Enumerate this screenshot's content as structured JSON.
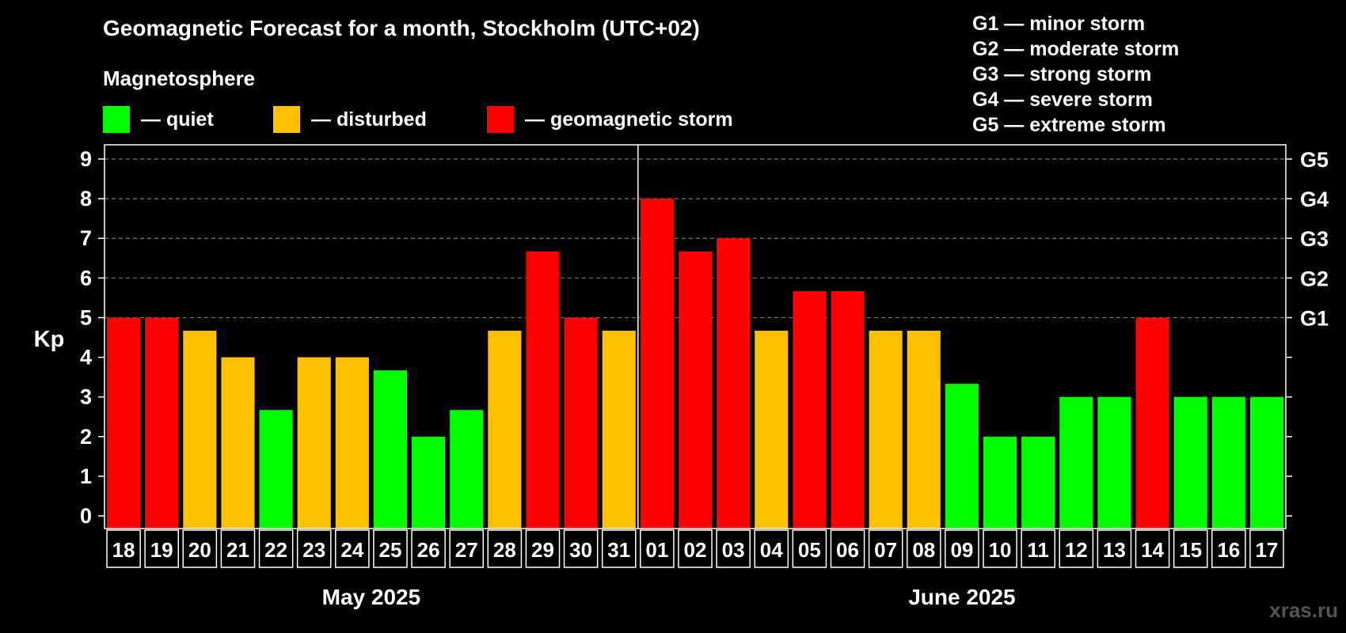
{
  "chart_data": {
    "type": "bar",
    "title": "Geomagnetic Forecast for a month, Stockholm (UTC+02)",
    "ylabel": "Kp",
    "ylim": [
      0,
      9
    ],
    "yticks": [
      0,
      1,
      2,
      3,
      4,
      5,
      6,
      7,
      8,
      9
    ],
    "right_axis_labels": [
      {
        "kp": 5,
        "label": "G1"
      },
      {
        "kp": 6,
        "label": "G2"
      },
      {
        "kp": 7,
        "label": "G3"
      },
      {
        "kp": 8,
        "label": "G4"
      },
      {
        "kp": 9,
        "label": "G5"
      }
    ],
    "categories": [
      "18",
      "19",
      "20",
      "21",
      "22",
      "23",
      "24",
      "25",
      "26",
      "27",
      "28",
      "29",
      "30",
      "31",
      "01",
      "02",
      "03",
      "04",
      "05",
      "06",
      "07",
      "08",
      "09",
      "10",
      "11",
      "12",
      "13",
      "14",
      "15",
      "16",
      "17"
    ],
    "values": [
      5,
      5,
      4.67,
      4,
      2.67,
      4,
      4,
      3.67,
      2,
      2.67,
      4.67,
      6.67,
      5,
      4.67,
      8,
      6.67,
      7,
      4.67,
      5.67,
      5.67,
      4.67,
      4.67,
      3.33,
      2,
      2,
      3,
      3,
      5,
      3,
      3,
      3
    ],
    "levels": [
      "storm",
      "storm",
      "disturbed",
      "disturbed",
      "quiet",
      "disturbed",
      "disturbed",
      "quiet",
      "quiet",
      "quiet",
      "disturbed",
      "storm",
      "storm",
      "disturbed",
      "storm",
      "storm",
      "storm",
      "disturbed",
      "storm",
      "storm",
      "disturbed",
      "disturbed",
      "quiet",
      "quiet",
      "quiet",
      "quiet",
      "quiet",
      "storm",
      "quiet",
      "quiet",
      "quiet"
    ],
    "month_groups": [
      {
        "label": "May 2025",
        "start": 0,
        "count": 14
      },
      {
        "label": "June 2025",
        "start": 14,
        "count": 17
      }
    ],
    "grid": true,
    "month_separator_after_index": 13
  },
  "legend": {
    "heading": "Magnetosphere",
    "items": [
      {
        "key": "quiet",
        "label": "— quiet",
        "color": "#00ff00"
      },
      {
        "key": "disturbed",
        "label": "— disturbed",
        "color": "#ffc000"
      },
      {
        "key": "storm",
        "label": "— geomagnetic storm",
        "color": "#ff0000"
      }
    ]
  },
  "storm_scale": [
    "G1 — minor storm",
    "G2 — moderate storm",
    "G3 — strong storm",
    "G4 — severe storm",
    "G5 — extreme storm"
  ],
  "colors": {
    "quiet": "#00ff00",
    "disturbed": "#ffc000",
    "storm": "#ff0000",
    "background": "#000000",
    "axis": "#ffffff",
    "grid": "#777777"
  },
  "watermark": "xras.ru"
}
